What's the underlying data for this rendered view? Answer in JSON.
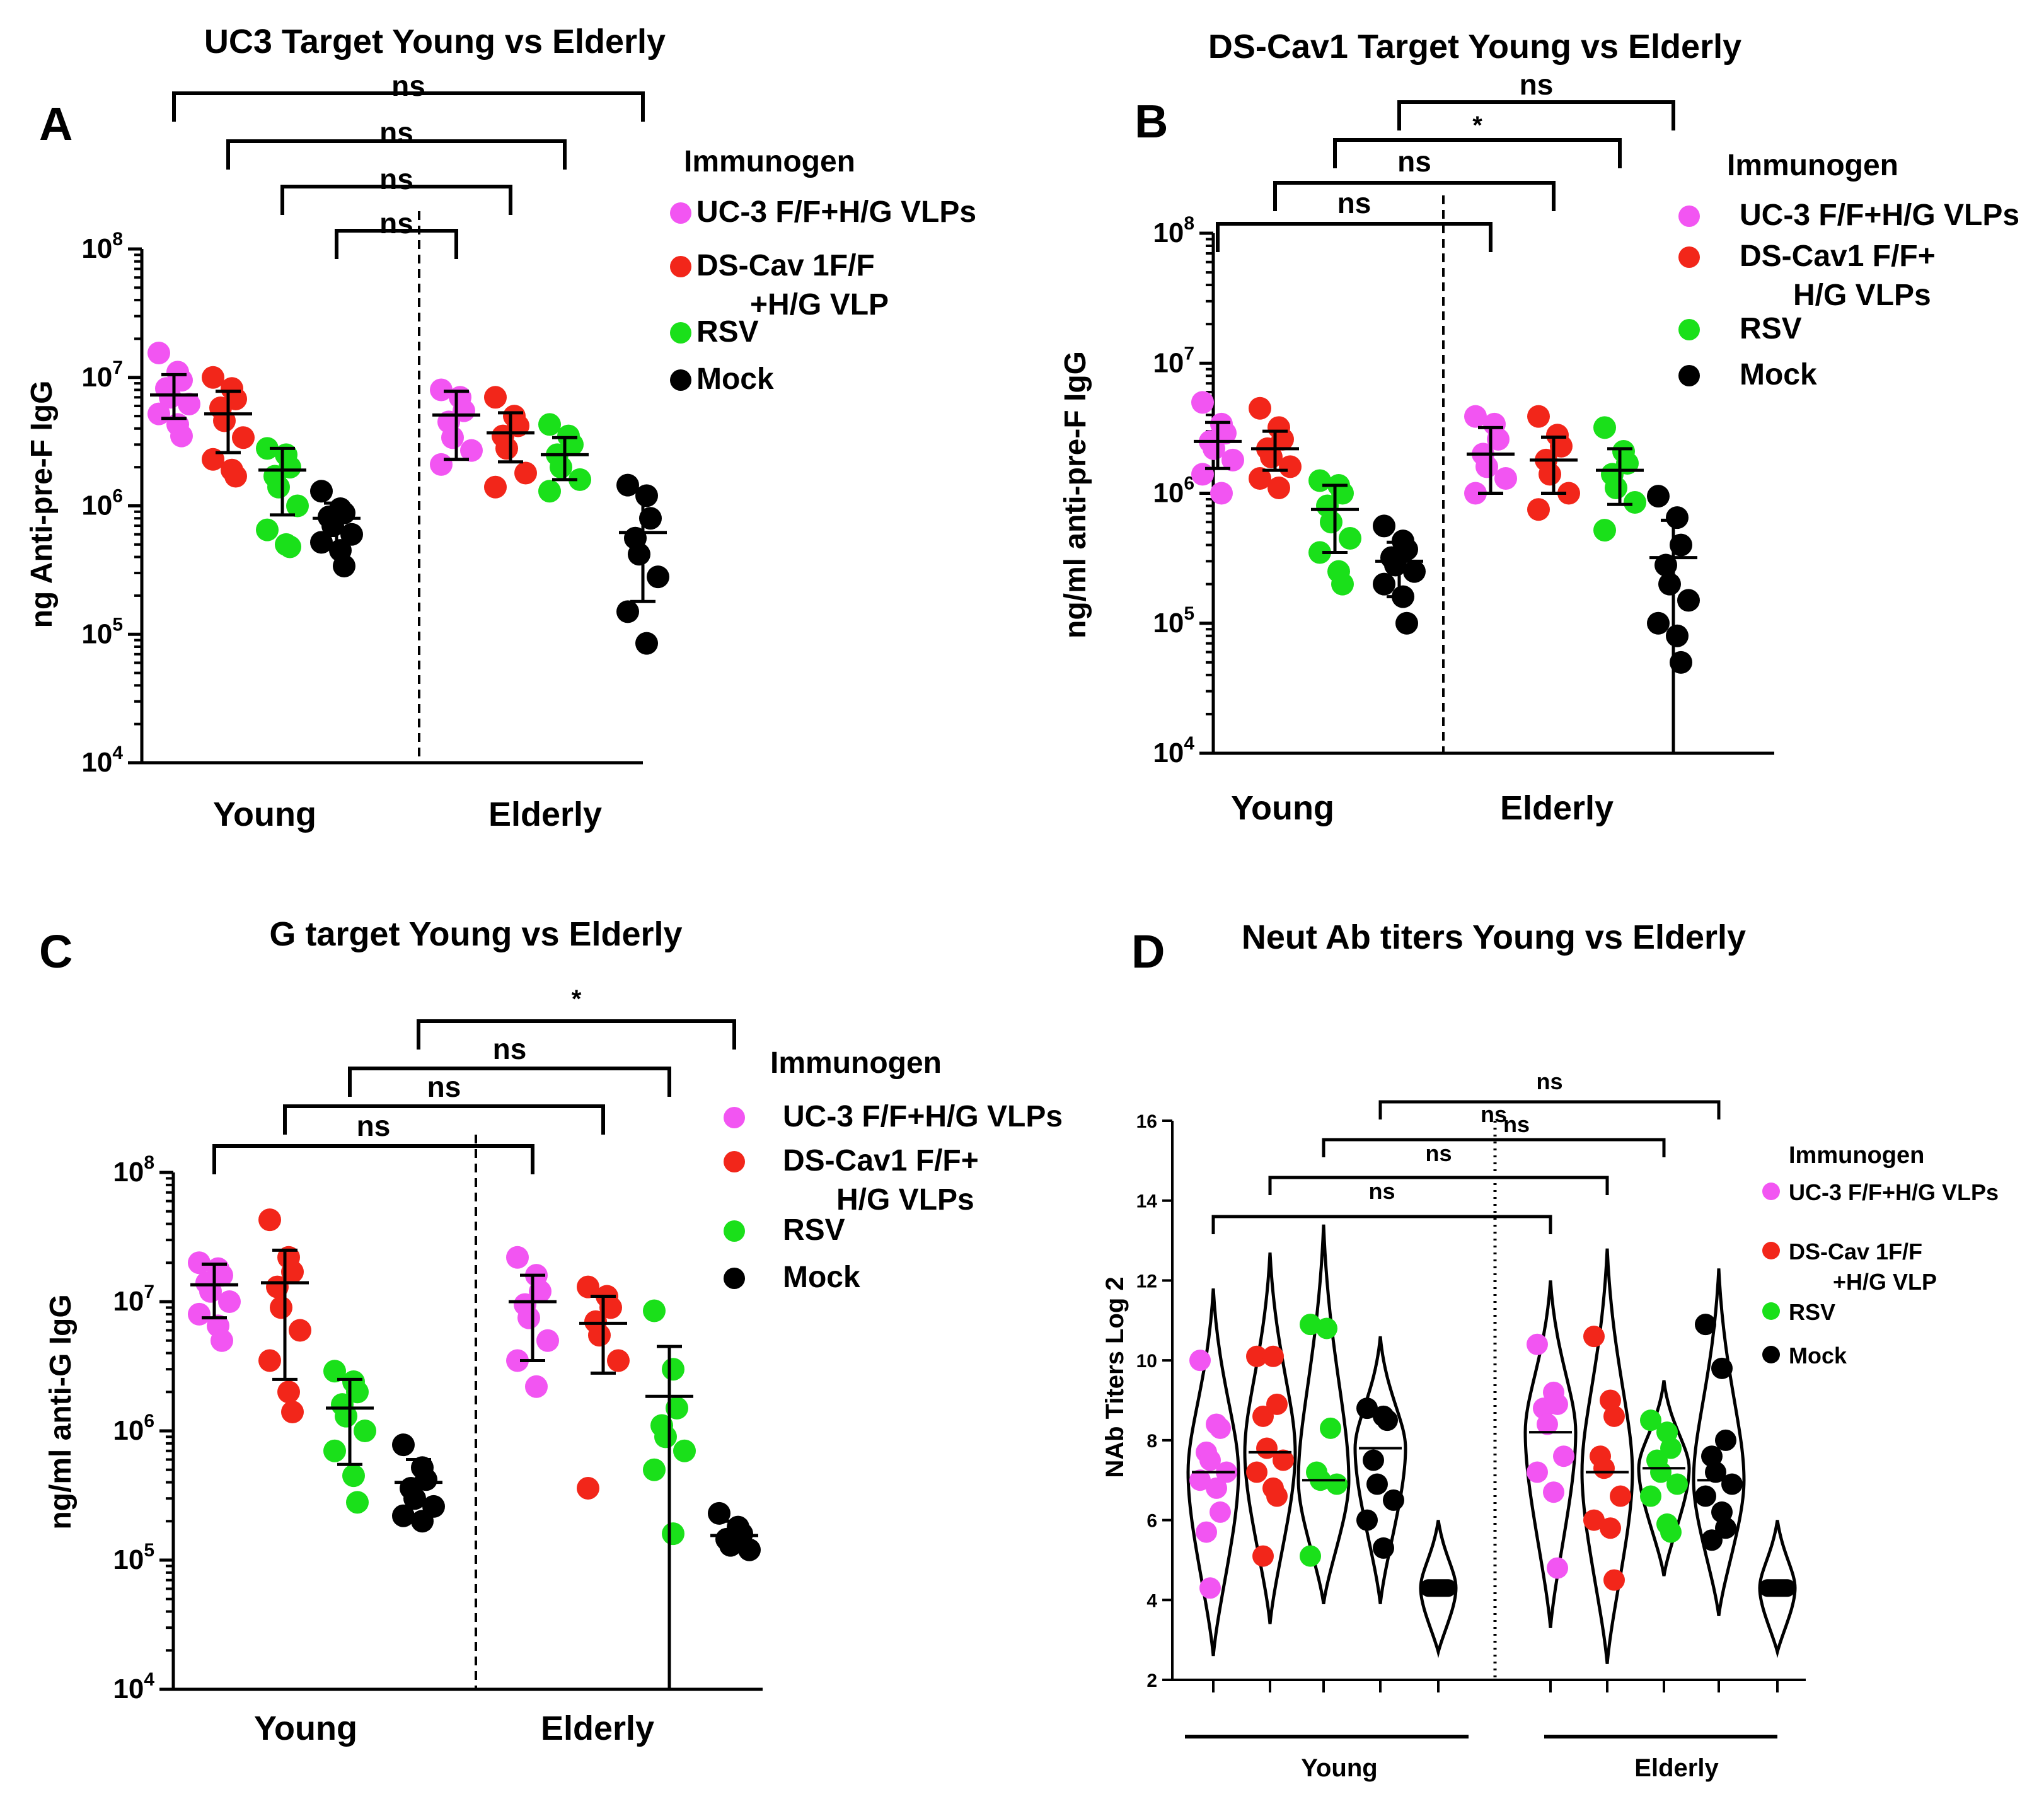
{
  "colors": {
    "uc3": "#f255f2",
    "dscav": "#f2261a",
    "rsv": "#1ae01a",
    "mock": "#000000",
    "axis": "#000000"
  },
  "chart_data": [
    {
      "id": "A",
      "panel_label": "A",
      "type": "scatter",
      "scale": "log",
      "title": "UC3 Target Young vs Elderly",
      "ylabel": "ng Anti-pre-F IgG",
      "ylim": [
        10000,
        100000000
      ],
      "yticks": [
        {
          "m": "10",
          "e": "4"
        },
        {
          "m": "10",
          "e": "5"
        },
        {
          "m": "10",
          "e": "6"
        },
        {
          "m": "10",
          "e": "7"
        },
        {
          "m": "10",
          "e": "8"
        }
      ],
      "group_labels": [
        "Young",
        "Elderly"
      ],
      "legend_title": "Immunogen",
      "legend": [
        {
          "key": "uc3",
          "lines": [
            "UC-3 F/F+H/G VLPs"
          ]
        },
        {
          "key": "dscav",
          "lines": [
            "DS-Cav 1F/F",
            "+H/G VLP"
          ]
        },
        {
          "key": "rsv",
          "lines": [
            "RSV"
          ]
        },
        {
          "key": "mock",
          "lines": [
            "Mock"
          ]
        }
      ],
      "series": [
        {
          "group": "Young",
          "key": "uc3",
          "mean": 7300000,
          "lo": 4800000,
          "hi": 10500000,
          "points": [
            15500000,
            11000000,
            9500000,
            8200000,
            7000000,
            6200000,
            5200000,
            4300000,
            3500000
          ]
        },
        {
          "group": "Young",
          "key": "dscav",
          "mean": 5200000,
          "lo": 2600000,
          "hi": 7800000,
          "points": [
            10000000,
            8200000,
            6800000,
            5800000,
            4600000,
            3400000,
            2300000,
            1900000,
            1700000
          ]
        },
        {
          "group": "Young",
          "key": "rsv",
          "mean": 1900000,
          "lo": 850000,
          "hi": 2800000,
          "points": [
            2800000,
            2500000,
            2000000,
            1700000,
            1400000,
            1000000,
            650000,
            500000,
            480000
          ]
        },
        {
          "group": "Young",
          "key": "mock",
          "mean": 800000,
          "lo": 500000,
          "hi": 1050000,
          "points": [
            1300000,
            950000,
            880000,
            820000,
            700000,
            600000,
            520000,
            450000,
            340000
          ]
        },
        {
          "group": "Elderly",
          "key": "uc3",
          "mean": 5100000,
          "lo": 2300000,
          "hi": 7800000,
          "points": [
            8000000,
            7000000,
            5500000,
            4500000,
            3400000,
            2700000,
            2100000
          ]
        },
        {
          "group": "Elderly",
          "key": "dscav",
          "mean": 3700000,
          "lo": 2200000,
          "hi": 5300000,
          "points": [
            7000000,
            5000000,
            4200000,
            3500000,
            2800000,
            1800000,
            1400000
          ]
        },
        {
          "group": "Elderly",
          "key": "rsv",
          "mean": 2500000,
          "lo": 1600000,
          "hi": 3400000,
          "points": [
            4300000,
            3500000,
            3000000,
            2500000,
            2000000,
            1600000,
            1300000
          ]
        },
        {
          "group": "Elderly",
          "key": "mock",
          "mean": 620000,
          "lo": 180000,
          "hi": 1300000,
          "points": [
            1450000,
            1200000,
            800000,
            560000,
            420000,
            280000,
            150000,
            85000
          ]
        }
      ],
      "comparisons": [
        {
          "from": [
            0,
            0
          ],
          "to": [
            1,
            3
          ],
          "label": "ns"
        },
        {
          "from": [
            0,
            1
          ],
          "to": [
            1,
            2
          ],
          "label": "ns"
        },
        {
          "from": [
            0,
            2
          ],
          "to": [
            1,
            1
          ],
          "label": "ns"
        },
        {
          "from": [
            0,
            3
          ],
          "to": [
            1,
            0
          ],
          "label": "ns"
        }
      ]
    },
    {
      "id": "B",
      "panel_label": "B",
      "type": "scatter",
      "scale": "log",
      "title": "DS-Cav1 Target Young vs Elderly",
      "ylabel": "ng/ml anti-pre-F IgG",
      "ylim": [
        10000,
        100000000
      ],
      "yticks": [
        {
          "m": "10",
          "e": "4"
        },
        {
          "m": "10",
          "e": "5"
        },
        {
          "m": "10",
          "e": "6"
        },
        {
          "m": "10",
          "e": "7"
        },
        {
          "m": "10",
          "e": "8"
        }
      ],
      "group_labels": [
        "Young",
        "Elderly"
      ],
      "legend_title": "Immunogen",
      "legend": [
        {
          "key": "uc3",
          "lines": [
            "UC-3 F/F+H/G VLPs"
          ]
        },
        {
          "key": "dscav",
          "lines": [
            "DS-Cav1 F/F+",
            "H/G VLPs"
          ]
        },
        {
          "key": "rsv",
          "lines": [
            "RSV"
          ]
        },
        {
          "key": "mock",
          "lines": [
            "Mock"
          ]
        }
      ],
      "series": [
        {
          "group": "Young",
          "key": "uc3",
          "mean": 2500000,
          "lo": 1550000,
          "hi": 3500000,
          "points": [
            5000000,
            3400000,
            2900000,
            2500000,
            2200000,
            1800000,
            1400000,
            1000000
          ]
        },
        {
          "group": "Young",
          "key": "dscav",
          "mean": 2200000,
          "lo": 1500000,
          "hi": 3000000,
          "points": [
            4500000,
            3200000,
            2600000,
            2200000,
            1900000,
            1600000,
            1300000,
            1100000
          ]
        },
        {
          "group": "Young",
          "key": "rsv",
          "mean": 750000,
          "lo": 350000,
          "hi": 1150000,
          "points": [
            1250000,
            1150000,
            1000000,
            800000,
            600000,
            450000,
            350000,
            250000,
            200000
          ]
        },
        {
          "group": "Young",
          "key": "mock",
          "mean": 300000,
          "lo": 160000,
          "hi": 420000,
          "points": [
            560000,
            430000,
            370000,
            320000,
            280000,
            250000,
            200000,
            160000,
            100000
          ]
        },
        {
          "group": "Elderly",
          "key": "uc3",
          "mean": 2000000,
          "lo": 1000000,
          "hi": 3200000,
          "points": [
            3900000,
            3400000,
            2600000,
            2000000,
            1600000,
            1300000,
            1000000
          ]
        },
        {
          "group": "Elderly",
          "key": "dscav",
          "mean": 1800000,
          "lo": 1000000,
          "hi": 2700000,
          "points": [
            3900000,
            2800000,
            2300000,
            1800000,
            1400000,
            1000000,
            750000
          ]
        },
        {
          "group": "Elderly",
          "key": "rsv",
          "mean": 1500000,
          "lo": 820000,
          "hi": 2200000,
          "points": [
            3200000,
            2100000,
            1700000,
            1400000,
            1100000,
            850000,
            520000
          ]
        },
        {
          "group": "Elderly",
          "key": "mock",
          "mean": 320000,
          "lo": 10000,
          "hi": 620000,
          "points": [
            950000,
            650000,
            400000,
            280000,
            200000,
            150000,
            100000,
            80000,
            50000
          ]
        }
      ],
      "comparisons": [
        {
          "from": [
            0,
            0
          ],
          "to": [
            1,
            0
          ],
          "label": "ns"
        },
        {
          "from": [
            0,
            1
          ],
          "to": [
            1,
            1
          ],
          "label": "ns"
        },
        {
          "from": [
            0,
            2
          ],
          "to": [
            1,
            2
          ],
          "label": "*"
        },
        {
          "from": [
            0,
            3
          ],
          "to": [
            1,
            3
          ],
          "label": "ns"
        }
      ]
    },
    {
      "id": "C",
      "panel_label": "C",
      "type": "scatter",
      "scale": "log",
      "title": "G target  Young vs Elderly",
      "ylabel": "ng/ml anti-G IgG",
      "ylim": [
        10000,
        100000000
      ],
      "yticks": [
        {
          "m": "10",
          "e": "4"
        },
        {
          "m": "10",
          "e": "5"
        },
        {
          "m": "10",
          "e": "6"
        },
        {
          "m": "10",
          "e": "7"
        },
        {
          "m": "10",
          "e": "8"
        }
      ],
      "group_labels": [
        "Young",
        "Elderly"
      ],
      "legend_title": "Immunogen",
      "legend": [
        {
          "key": "uc3",
          "lines": [
            "UC-3 F/F+H/G VLPs"
          ]
        },
        {
          "key": "dscav",
          "lines": [
            "DS-Cav1 F/F+",
            "H/G VLPs"
          ]
        },
        {
          "key": "rsv",
          "lines": [
            "RSV"
          ]
        },
        {
          "key": "mock",
          "lines": [
            "Mock"
          ]
        }
      ],
      "series": [
        {
          "group": "Young",
          "key": "uc3",
          "mean": 13500000,
          "lo": 7500000,
          "hi": 19500000,
          "points": [
            20000000,
            18000000,
            16000000,
            14000000,
            12000000,
            10000000,
            8000000,
            6500000,
            5000000
          ]
        },
        {
          "group": "Young",
          "key": "dscav",
          "mean": 14000000,
          "lo": 2500000,
          "hi": 25000000,
          "points": [
            43000000,
            22000000,
            17000000,
            13000000,
            9000000,
            6000000,
            3500000,
            2000000,
            1400000
          ]
        },
        {
          "group": "Young",
          "key": "rsv",
          "mean": 1500000,
          "lo": 550000,
          "hi": 2500000,
          "points": [
            2900000,
            2400000,
            2000000,
            1600000,
            1300000,
            1000000,
            700000,
            450000,
            280000
          ]
        },
        {
          "group": "Young",
          "key": "mock",
          "mean": 400000,
          "lo": 280000,
          "hi": 600000,
          "points": [
            780000,
            520000,
            420000,
            360000,
            300000,
            260000,
            220000,
            200000
          ]
        },
        {
          "group": "Elderly",
          "key": "uc3",
          "mean": 10000000,
          "lo": 3500000,
          "hi": 16000000,
          "points": [
            22000000,
            16000000,
            12000000,
            9500000,
            7500000,
            5000000,
            3500000,
            2200000
          ]
        },
        {
          "group": "Elderly",
          "key": "dscav",
          "mean": 6800000,
          "lo": 2800000,
          "hi": 11000000,
          "points": [
            13000000,
            11000000,
            9000000,
            7000000,
            5500000,
            3500000,
            360000
          ]
        },
        {
          "group": "Elderly",
          "key": "rsv",
          "mean": 1850000,
          "lo": 10000,
          "hi": 4500000,
          "points": [
            8500000,
            3000000,
            1500000,
            1100000,
            900000,
            700000,
            500000,
            160000
          ]
        },
        {
          "group": "Elderly",
          "key": "mock",
          "mean": 155000,
          "lo": 120000,
          "hi": 200000,
          "points": [
            230000,
            180000,
            160000,
            145000,
            130000,
            120000
          ]
        }
      ],
      "comparisons": [
        {
          "from": [
            0,
            0
          ],
          "to": [
            1,
            0
          ],
          "label": "ns"
        },
        {
          "from": [
            0,
            1
          ],
          "to": [
            1,
            1
          ],
          "label": "ns"
        },
        {
          "from": [
            0,
            2
          ],
          "to": [
            1,
            2
          ],
          "label": "ns"
        },
        {
          "from": [
            0,
            3
          ],
          "to": [
            1,
            3
          ],
          "label": "*"
        }
      ]
    },
    {
      "id": "D",
      "panel_label": "D",
      "type": "violin",
      "scale": "linear",
      "title": "Neut Ab titers   Young vs Elderly",
      "ylabel": "NAb Titers Log 2",
      "ylim": [
        2,
        16
      ],
      "yticks": [
        2,
        4,
        6,
        8,
        10,
        12,
        14,
        16
      ],
      "group_labels": [
        "Young",
        "Elderly"
      ],
      "legend_title": "Immunogen",
      "legend": [
        {
          "key": "uc3",
          "lines": [
            "UC-3 F/F+H/G VLPs"
          ]
        },
        {
          "key": "dscav",
          "lines": [
            "DS-Cav 1F/F",
            "+H/G VLP"
          ]
        },
        {
          "key": "rsv",
          "lines": [
            "RSV"
          ]
        },
        {
          "key": "mock",
          "lines": [
            "Mock"
          ]
        }
      ],
      "series": [
        {
          "group": "Young",
          "key": "uc3",
          "median": 7.2,
          "range": [
            2.6,
            11.8
          ],
          "points": [
            10.0,
            8.4,
            8.3,
            7.7,
            7.5,
            7.2,
            7.0,
            6.8,
            6.2,
            5.7,
            4.3
          ]
        },
        {
          "group": "Young",
          "key": "dscav",
          "median": 7.7,
          "range": [
            3.4,
            12.7
          ],
          "points": [
            10.1,
            10.1,
            8.9,
            8.6,
            7.8,
            7.5,
            7.2,
            6.8,
            6.6,
            5.1
          ]
        },
        {
          "group": "Young",
          "key": "rsv",
          "median": 7.0,
          "range": [
            3.9,
            13.4
          ],
          "points": [
            10.9,
            10.8,
            8.3,
            7.2,
            7.0,
            6.9,
            5.1
          ]
        },
        {
          "group": "Young",
          "key": "mock",
          "median": 7.8,
          "range": [
            3.9,
            10.6
          ],
          "points": [
            8.8,
            8.6,
            8.5,
            7.5,
            6.9,
            6.5,
            6.0,
            5.3
          ]
        },
        {
          "group": "Young",
          "key": "mock",
          "median": 4.3,
          "range": [
            2.7,
            6.0
          ],
          "points": [
            4.3
          ]
        },
        {
          "group": "Elderly",
          "key": "uc3",
          "median": 8.2,
          "range": [
            3.3,
            12.0
          ],
          "points": [
            10.4,
            9.2,
            8.9,
            8.8,
            8.4,
            7.6,
            7.2,
            6.7,
            4.8
          ]
        },
        {
          "group": "Elderly",
          "key": "dscav",
          "median": 7.2,
          "range": [
            2.4,
            12.8
          ],
          "points": [
            10.6,
            9.0,
            8.6,
            7.6,
            7.3,
            6.6,
            6.0,
            5.8,
            4.5
          ]
        },
        {
          "group": "Elderly",
          "key": "rsv",
          "median": 7.3,
          "range": [
            4.6,
            9.5
          ],
          "points": [
            8.5,
            8.2,
            7.8,
            7.5,
            7.2,
            6.9,
            6.6,
            5.9,
            5.7
          ]
        },
        {
          "group": "Elderly",
          "key": "mock",
          "median": 7.0,
          "range": [
            3.6,
            12.3
          ],
          "points": [
            10.9,
            9.8,
            8.0,
            7.6,
            7.2,
            6.9,
            6.6,
            6.2,
            5.8,
            5.5
          ]
        },
        {
          "group": "Elderly",
          "key": "mock",
          "median": 4.3,
          "range": [
            2.7,
            6.0
          ],
          "points": [
            4.3
          ]
        }
      ],
      "comparisons": [
        {
          "from": [
            0,
            0
          ],
          "to": [
            1,
            0
          ],
          "label": "ns"
        },
        {
          "from": [
            0,
            1
          ],
          "to": [
            1,
            1
          ],
          "label": "ns"
        },
        {
          "from": [
            0,
            2
          ],
          "to": [
            1,
            2
          ],
          "label": "ns"
        },
        {
          "from": [
            0,
            3
          ],
          "to": [
            1,
            3
          ],
          "label": "ns"
        },
        {
          "from": [
            0,
            3
          ],
          "to": [
            1,
            3
          ],
          "label": "ns"
        }
      ]
    }
  ]
}
